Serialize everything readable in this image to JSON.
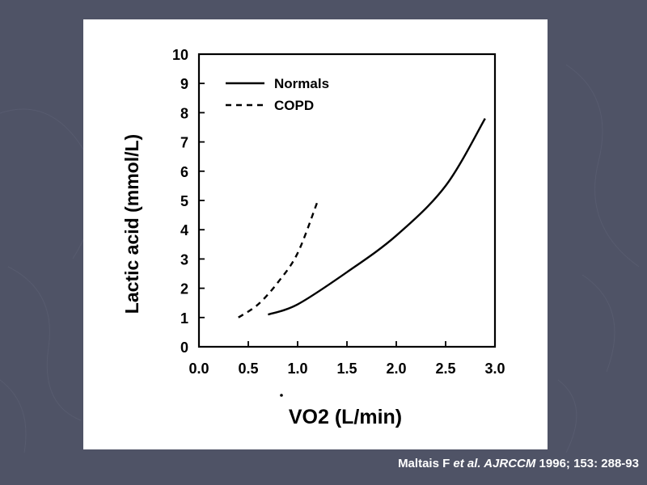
{
  "slide": {
    "background_color": "#4f5366",
    "citation": {
      "author": "Maltais F ",
      "etal": "et al.",
      "journal": " AJRCCM",
      "details": " 1996; 153: 288-93"
    }
  },
  "chart_data": {
    "type": "line",
    "xlabel": "VO2 (L/min)",
    "ylabel": "Lactic acid (mmol/L)",
    "xlim": [
      0.0,
      3.0
    ],
    "ylim": [
      0,
      10
    ],
    "x_ticks": [
      "0.0",
      "0.5",
      "1.0",
      "1.5",
      "2.0",
      "2.5",
      "3.0"
    ],
    "y_ticks": [
      "0",
      "1",
      "2",
      "3",
      "4",
      "5",
      "6",
      "7",
      "8",
      "9",
      "10"
    ],
    "grid": false,
    "legend_position": "top-left",
    "series": [
      {
        "name": "Normals",
        "style": "solid",
        "color": "#000000",
        "points": [
          [
            0.7,
            1.1
          ],
          [
            1.0,
            1.45
          ],
          [
            1.5,
            2.55
          ],
          [
            2.0,
            3.8
          ],
          [
            2.5,
            5.5
          ],
          [
            2.9,
            7.8
          ]
        ]
      },
      {
        "name": "COPD",
        "style": "dashed",
        "color": "#000000",
        "points": [
          [
            0.4,
            1.0
          ],
          [
            0.6,
            1.45
          ],
          [
            0.8,
            2.2
          ],
          [
            1.0,
            3.2
          ],
          [
            1.2,
            4.95
          ]
        ]
      }
    ]
  }
}
